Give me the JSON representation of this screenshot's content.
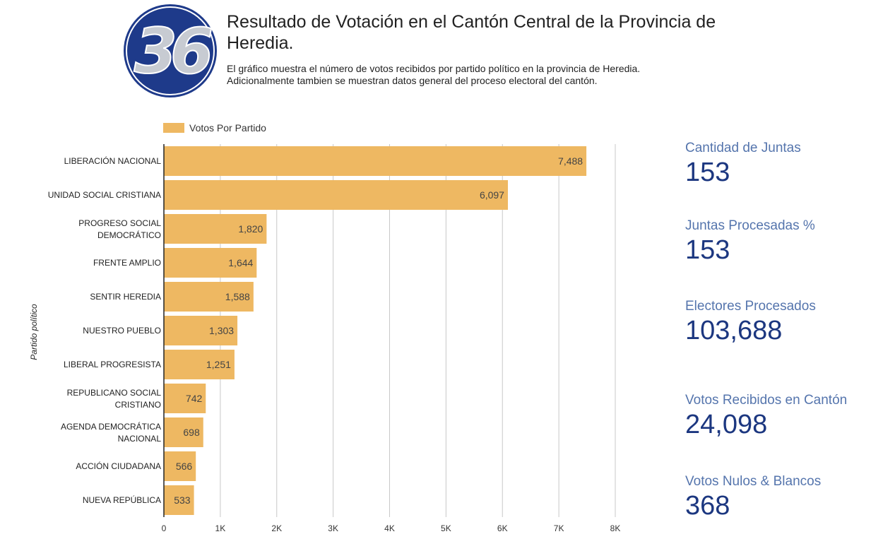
{
  "header": {
    "logo_text": "36",
    "title": "Resultado de Votación en el Cantón Central de la Provincia de Heredia.",
    "subtitle_line1": "El gráfico muestra el número de votos recibidos por partido político en la provincia de Heredia.",
    "subtitle_line2": "Adicionalmente tambien se muestran datos general del proceso electoral del cantón."
  },
  "colors": {
    "bar": "#eeb862",
    "stat_label": "#5575ad",
    "stat_value": "#1c3780",
    "logo_blue": "#1e3a8a",
    "logo_gray": "#c7cbd2"
  },
  "stats": [
    {
      "label": "Cantidad de Juntas",
      "value": "153"
    },
    {
      "label": "Juntas Procesadas %",
      "value": "153"
    },
    {
      "label": "Electores Procesados",
      "value": "103,688"
    },
    {
      "label": "Votos Recibidos en Cantón",
      "value": "24,098"
    },
    {
      "label": "Votos Nulos & Blancos",
      "value": "368"
    }
  ],
  "chart_data": {
    "type": "bar",
    "orientation": "horizontal",
    "title": "",
    "xlabel": "",
    "ylabel": "Partido político",
    "legend": [
      "Votos Por Partido"
    ],
    "legend_position": "top-left",
    "grid": true,
    "xlim": [
      0,
      8000
    ],
    "x_ticks": [
      "0",
      "1K",
      "2K",
      "3K",
      "4K",
      "5K",
      "6K",
      "7K",
      "8K"
    ],
    "categories": [
      [
        "LIBERACIÓN NACIONAL"
      ],
      [
        "UNIDAD SOCIAL CRISTIANA"
      ],
      [
        "PROGRESO SOCIAL",
        "DEMOCRÁTICO"
      ],
      [
        "FRENTE AMPLIO"
      ],
      [
        "SENTIR HEREDIA"
      ],
      [
        "NUESTRO PUEBLO"
      ],
      [
        "LIBERAL PROGRESISTA"
      ],
      [
        "REPUBLICANO SOCIAL",
        "CRISTIANO"
      ],
      [
        "AGENDA DEMOCRÁTICA",
        "NACIONAL"
      ],
      [
        "ACCIÓN CIUDADANA"
      ],
      [
        "NUEVA REPÚBLICA"
      ]
    ],
    "values": [
      7488,
      6097,
      1820,
      1644,
      1588,
      1303,
      1251,
      742,
      698,
      566,
      533
    ],
    "value_labels": [
      "7,488",
      "6,097",
      "1,820",
      "1,644",
      "1,588",
      "1,303",
      "1,251",
      "742",
      "698",
      "566",
      "533"
    ]
  }
}
